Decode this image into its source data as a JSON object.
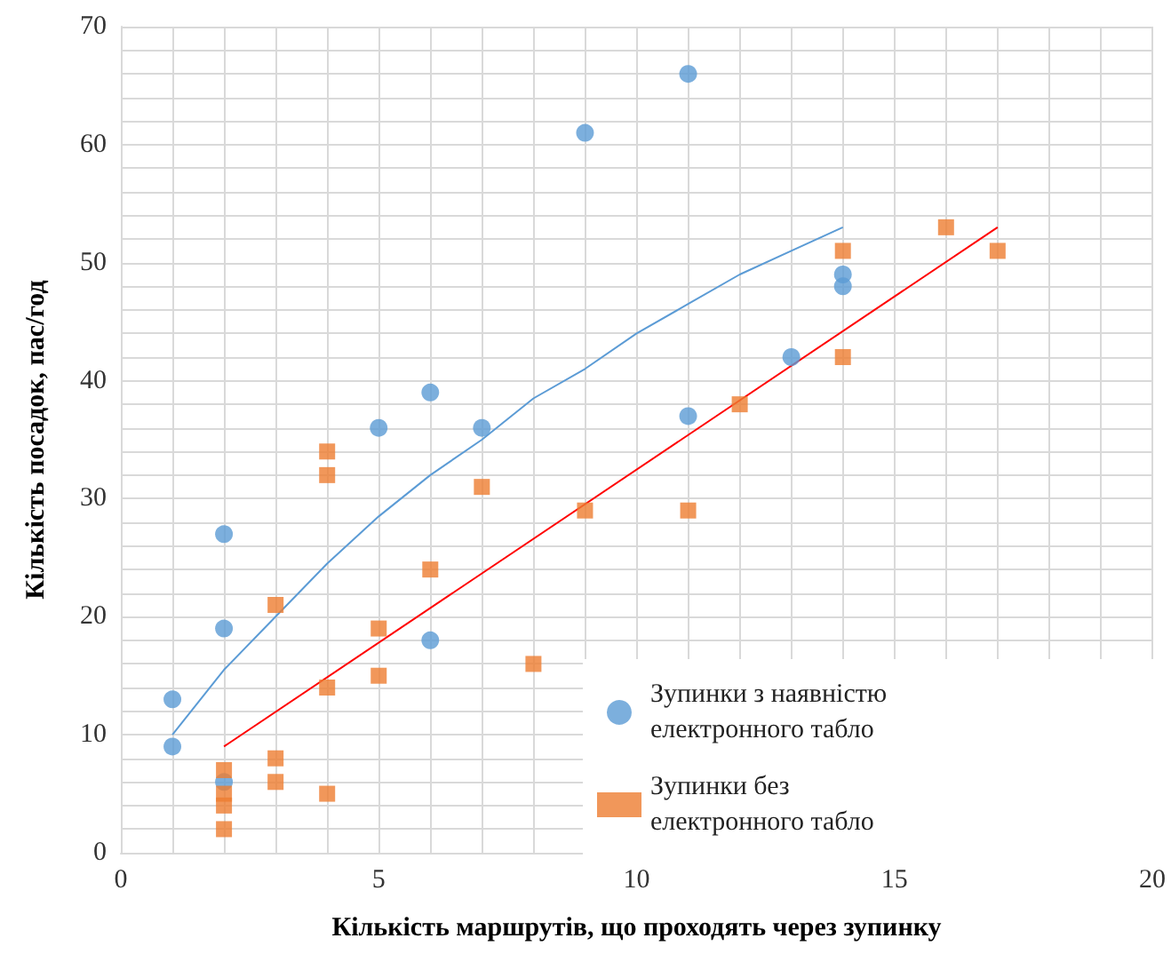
{
  "chart_data": {
    "type": "scatter",
    "xlabel": "Кількість маршрутів, що проходять через зупинку",
    "ylabel": "Кількість посадок, пас/год",
    "xlim": [
      0,
      20
    ],
    "xticks": [
      0,
      5,
      10,
      15,
      20
    ],
    "ylim": [
      0,
      70
    ],
    "yticks": [
      0,
      10,
      20,
      30,
      40,
      50,
      60,
      70
    ],
    "grid": true,
    "legend": "bottom right",
    "series": [
      {
        "name": "Зупинки з наявністю електронного табло",
        "color": "#5b9bd5",
        "marker": "circle",
        "x": [
          1,
          1,
          2,
          2,
          2,
          5,
          6,
          6,
          7,
          9,
          11,
          11,
          13,
          14,
          14
        ],
        "values": [
          13,
          9,
          27,
          19,
          6,
          36,
          39,
          18,
          36,
          61,
          66,
          37,
          42,
          49,
          48
        ]
      },
      {
        "name": "Зупинки без електронного табло",
        "color": "#ed7d31",
        "marker": "square",
        "x": [
          2,
          2,
          2,
          2,
          3,
          3,
          3,
          4,
          4,
          4,
          4,
          5,
          5,
          6,
          7,
          8,
          9,
          11,
          12,
          14,
          14,
          16,
          17
        ],
        "values": [
          7,
          5,
          4,
          2,
          21,
          8,
          6,
          34,
          32,
          14,
          5,
          19,
          15,
          24,
          31,
          16,
          29,
          29,
          38,
          51,
          42,
          53,
          51
        ]
      },
      {
        "type": "line",
        "color": "#5b9bd5",
        "marker": "none",
        "x": [
          1,
          2,
          3,
          4,
          5,
          6,
          7,
          8,
          9,
          10,
          11,
          12,
          13,
          14
        ],
        "values": [
          10,
          15.5,
          20,
          24.5,
          28.5,
          32,
          35,
          38.5,
          41,
          44,
          46.5,
          49,
          51,
          53
        ]
      },
      {
        "type": "line",
        "color": "#ff0000",
        "marker": "none",
        "x": [
          2,
          17
        ],
        "values": [
          9,
          53
        ]
      }
    ]
  }
}
